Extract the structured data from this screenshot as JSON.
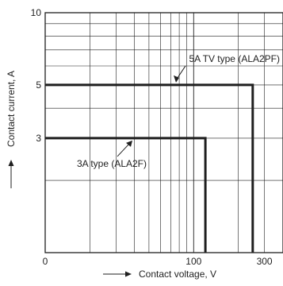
{
  "chart_data": {
    "type": "line",
    "xlabel": "Contact voltage, V",
    "ylabel": "Contact current, A",
    "x_scale": "log",
    "y_scale": "log",
    "xlim": [
      0,
      300
    ],
    "ylim": [
      1,
      10
    ],
    "x_tick_labels": [
      {
        "value": 0,
        "label": "0"
      },
      {
        "value": 100,
        "label": "100"
      },
      {
        "value": 300,
        "label": "300"
      }
    ],
    "y_tick_labels": [
      {
        "value": 10,
        "label": "10"
      },
      {
        "value": 5,
        "label": "5"
      },
      {
        "value": 3,
        "label": "3"
      }
    ],
    "grid": true,
    "series": [
      {
        "name": "5A TV type (ALA2PF)",
        "x": [
          0,
          250,
          250
        ],
        "y": [
          5,
          5,
          1
        ]
      },
      {
        "name": "3A type (ALA2F)",
        "x": [
          0,
          120,
          120
        ],
        "y": [
          3,
          3,
          1
        ]
      }
    ],
    "annotations": [
      {
        "text": "5A TV type (ALA2PF)",
        "series": 0
      },
      {
        "text": "3A type (ALA2F)",
        "series": 1
      }
    ],
    "colors": {
      "line": "#1f1f1f",
      "grid": "#1f1f1f",
      "background": "#ffffff"
    }
  }
}
